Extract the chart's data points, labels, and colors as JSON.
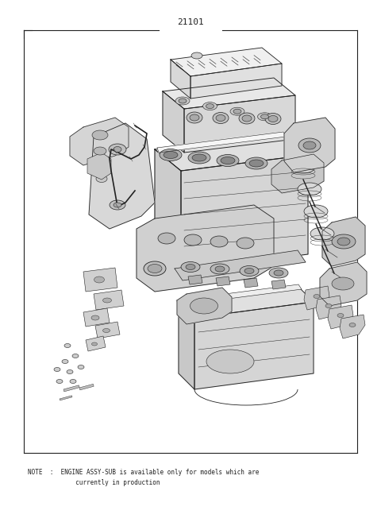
{
  "background_color": "#ffffff",
  "part_number": "21101",
  "note_line1": "NOTE  :  ENGINE ASSY-SUB is available only for models which are",
  "note_line2": "             currently in production",
  "border_color": "#333333",
  "engine_color": "#222222",
  "fig_width": 4.8,
  "fig_height": 6.57,
  "dpi": 100
}
